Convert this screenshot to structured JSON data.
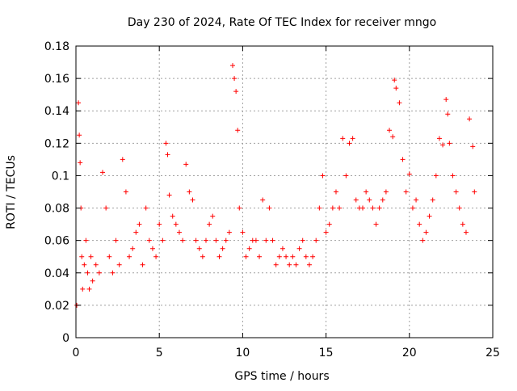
{
  "chart_data": {
    "type": "scatter",
    "title": "Day 230 of 2024, Rate Of TEC Index for receiver mngo",
    "xlabel": "GPS time / hours",
    "ylabel": "ROTI / TECUs",
    "xlim": [
      0,
      25
    ],
    "ylim": [
      0,
      0.18
    ],
    "x_ticks": [
      "0",
      "5",
      "10",
      "15",
      "20",
      "25"
    ],
    "y_ticks": [
      "0",
      "0.02",
      "0.04",
      "0.06",
      "0.08",
      "0.1",
      "0.12",
      "0.14",
      "0.16",
      "0.18"
    ],
    "grid": true,
    "marker": "plus",
    "color": "#ff0000",
    "series": [
      {
        "x": [
          0.05,
          0.15,
          0.2,
          0.25,
          0.3,
          0.35,
          0.4,
          0.5,
          0.6,
          0.7,
          0.8,
          0.9,
          1.0,
          1.2,
          1.4,
          1.6,
          1.8,
          2.0,
          2.2,
          2.4,
          2.6,
          2.8,
          3.0,
          3.2,
          3.4,
          3.6,
          3.8,
          4.0,
          4.2,
          4.4,
          4.6,
          4.8,
          5.0,
          5.2,
          5.4,
          5.5,
          5.6,
          5.8,
          6.0,
          6.2,
          6.4,
          6.6,
          6.8,
          7.0,
          7.2,
          7.4,
          7.6,
          7.8,
          8.0,
          8.2,
          8.4,
          8.6,
          8.8,
          9.0,
          9.2,
          9.4,
          9.5,
          9.6,
          9.7,
          9.8,
          10.0,
          10.2,
          10.4,
          10.6,
          10.8,
          11.0,
          11.2,
          11.4,
          11.6,
          11.8,
          12.0,
          12.2,
          12.4,
          12.6,
          12.8,
          13.0,
          13.2,
          13.4,
          13.6,
          13.8,
          14.0,
          14.2,
          14.4,
          14.6,
          14.8,
          15.0,
          15.2,
          15.4,
          15.6,
          15.8,
          16.0,
          16.2,
          16.4,
          16.6,
          16.8,
          17.0,
          17.2,
          17.4,
          17.6,
          17.8,
          18.0,
          18.2,
          18.4,
          18.6,
          18.8,
          19.0,
          19.1,
          19.2,
          19.4,
          19.6,
          19.8,
          20.0,
          20.2,
          20.4,
          20.6,
          20.8,
          21.0,
          21.2,
          21.4,
          21.6,
          21.8,
          22.0,
          22.2,
          22.3,
          22.4,
          22.6,
          22.8,
          23.0,
          23.2,
          23.4,
          23.6,
          23.8,
          23.9
        ],
        "y": [
          0.02,
          0.145,
          0.125,
          0.108,
          0.08,
          0.05,
          0.03,
          0.045,
          0.06,
          0.04,
          0.03,
          0.05,
          0.035,
          0.045,
          0.04,
          0.102,
          0.08,
          0.05,
          0.04,
          0.06,
          0.045,
          0.11,
          0.09,
          0.05,
          0.055,
          0.065,
          0.07,
          0.045,
          0.08,
          0.06,
          0.055,
          0.05,
          0.07,
          0.06,
          0.12,
          0.113,
          0.088,
          0.075,
          0.07,
          0.065,
          0.06,
          0.107,
          0.09,
          0.085,
          0.06,
          0.055,
          0.05,
          0.06,
          0.07,
          0.075,
          0.06,
          0.05,
          0.055,
          0.06,
          0.065,
          0.168,
          0.16,
          0.152,
          0.128,
          0.08,
          0.065,
          0.05,
          0.055,
          0.06,
          0.06,
          0.05,
          0.085,
          0.06,
          0.08,
          0.06,
          0.045,
          0.05,
          0.055,
          0.05,
          0.045,
          0.05,
          0.045,
          0.055,
          0.06,
          0.05,
          0.045,
          0.05,
          0.06,
          0.08,
          0.1,
          0.065,
          0.07,
          0.08,
          0.09,
          0.08,
          0.123,
          0.1,
          0.12,
          0.123,
          0.085,
          0.08,
          0.08,
          0.09,
          0.085,
          0.08,
          0.07,
          0.08,
          0.085,
          0.09,
          0.128,
          0.124,
          0.159,
          0.154,
          0.145,
          0.11,
          0.09,
          0.101,
          0.08,
          0.085,
          0.07,
          0.06,
          0.065,
          0.075,
          0.085,
          0.1,
          0.123,
          0.119,
          0.147,
          0.138,
          0.12,
          0.1,
          0.09,
          0.08,
          0.07,
          0.065,
          0.135,
          0.118,
          0.09
        ]
      }
    ]
  }
}
